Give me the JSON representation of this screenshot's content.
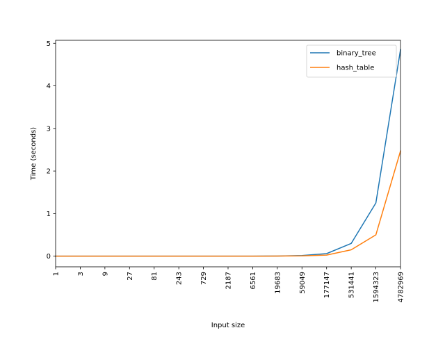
{
  "chart_data": {
    "type": "line",
    "title": "",
    "xlabel": "Input size",
    "ylabel": "Time (seconds)",
    "x": [
      "1",
      "3",
      "9",
      "27",
      "81",
      "243",
      "729",
      "2187",
      "6561",
      "19683",
      "59049",
      "177147",
      "531441",
      "1594323",
      "4782969"
    ],
    "ylim": [
      -0.25,
      5.07
    ],
    "yticks": [
      "0",
      "1",
      "2",
      "3",
      "4",
      "5"
    ],
    "grid": false,
    "legend_position": "upper right",
    "series": [
      {
        "name": "binary_tree",
        "color": "#1f77b4",
        "values": [
          0,
          0,
          0,
          0,
          0,
          0,
          0,
          0,
          0.001,
          0.003,
          0.015,
          0.06,
          0.3,
          1.25,
          4.85
        ]
      },
      {
        "name": "hash_table",
        "color": "#ff7f0e",
        "values": [
          0,
          0,
          0,
          0,
          0,
          0,
          0,
          0,
          0,
          0.002,
          0.007,
          0.025,
          0.15,
          0.5,
          2.47
        ]
      }
    ]
  }
}
